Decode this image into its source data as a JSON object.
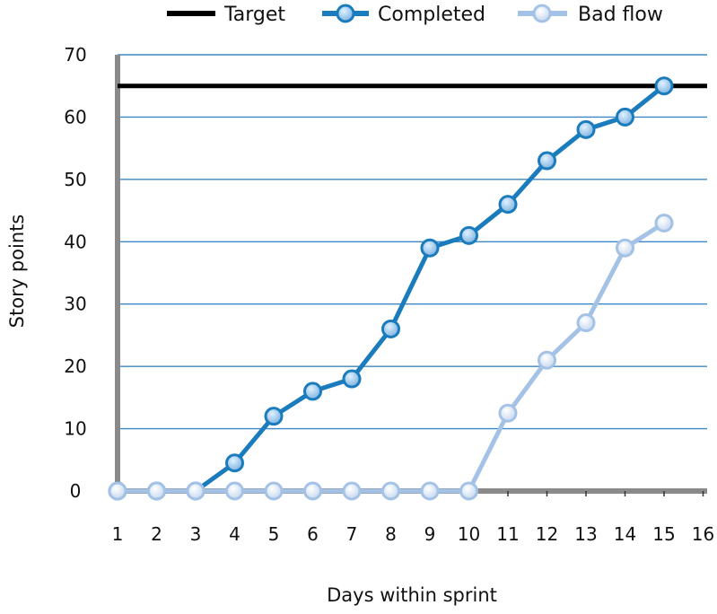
{
  "chart_data": {
    "type": "line",
    "xlabel": "Days within sprint",
    "ylabel": "Story points",
    "xlim": [
      1,
      16
    ],
    "ylim": [
      0,
      70
    ],
    "x_ticks": [
      1,
      2,
      3,
      4,
      5,
      6,
      7,
      8,
      9,
      10,
      11,
      12,
      13,
      14,
      15,
      16
    ],
    "y_ticks": [
      0,
      10,
      20,
      30,
      40,
      50,
      60,
      70
    ],
    "grid": true,
    "legend_position": "top",
    "target": {
      "name": "Target",
      "value": 65,
      "color": "#000000"
    },
    "series": [
      {
        "name": "Completed",
        "color": "#1a7bbd",
        "x": [
          1,
          2,
          3,
          4,
          5,
          6,
          7,
          8,
          9,
          10,
          11,
          12,
          13,
          14,
          15
        ],
        "values": [
          0,
          0,
          0,
          4.5,
          12,
          16,
          18,
          26,
          39,
          41,
          46,
          53,
          58,
          60,
          65
        ]
      },
      {
        "name": "Bad flow",
        "color": "#a4c2e6",
        "x": [
          1,
          2,
          3,
          4,
          5,
          6,
          7,
          8,
          9,
          10,
          11,
          12,
          13,
          14,
          15
        ],
        "values": [
          0,
          0,
          0,
          0,
          0,
          0,
          0,
          0,
          0,
          0,
          12.5,
          21,
          27,
          39,
          43
        ]
      }
    ],
    "colors": {
      "grid": "#3d87c4",
      "axis": "#8a8a8a"
    }
  }
}
